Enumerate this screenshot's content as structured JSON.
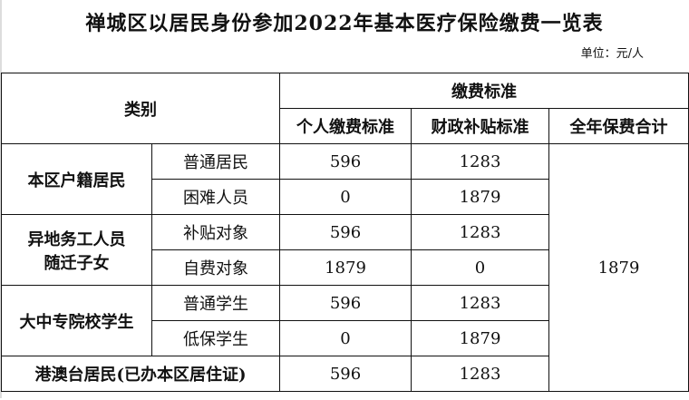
{
  "title": "禅城区以居民身份参加2022年基本医疗保险缴费一览表",
  "unit": "单位：元/人",
  "header": {
    "category": "类别",
    "group": "缴费标准",
    "personal": "个人缴费标准",
    "subsidy": "财政补贴标准",
    "total": "全年保费合计"
  },
  "groups": [
    {
      "name": "本区户籍居民",
      "rows": [
        {
          "type": "普通居民",
          "personal": "596",
          "subsidy": "1283"
        },
        {
          "type": "困难人员",
          "personal": "0",
          "subsidy": "1879"
        }
      ]
    },
    {
      "name": "异地务工人员随迁子女",
      "name_line1": "异地务工人员",
      "name_line2": "随迁子女",
      "rows": [
        {
          "type": "补贴对象",
          "personal": "596",
          "subsidy": "1283"
        },
        {
          "type": "自费对象",
          "personal": "1879",
          "subsidy": "0"
        }
      ]
    },
    {
      "name": "大中专院校学生",
      "rows": [
        {
          "type": "普通学生",
          "personal": "596",
          "subsidy": "1283"
        },
        {
          "type": "低保学生",
          "personal": "0",
          "subsidy": "1879"
        }
      ]
    }
  ],
  "last_row": {
    "name": "港澳台居民(已办本区居住证)",
    "personal": "596",
    "subsidy": "1283"
  },
  "total_value": "1879"
}
